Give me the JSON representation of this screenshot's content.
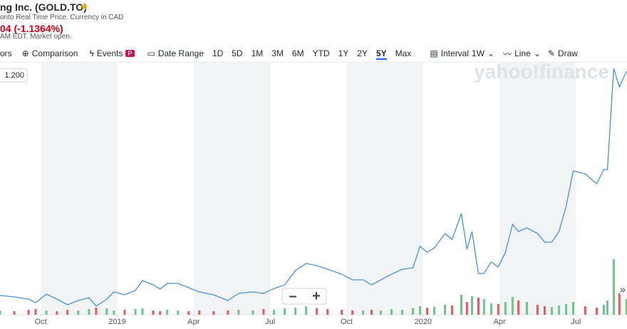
{
  "header": {
    "title": "ng Inc. (GOLD.TO)",
    "subtitle": "onto Real Time Price. Currency in CAD",
    "change": "04 (-1.1364%)",
    "status": "AM EDT. Market open."
  },
  "toolbar": {
    "indicators": "ors",
    "comparison": "Comparison",
    "events": "Events",
    "date_range": "Date Range",
    "ranges": [
      "1D",
      "5D",
      "1M",
      "3M",
      "6M",
      "YTD",
      "1Y",
      "2Y",
      "5Y",
      "Max"
    ],
    "active_range": "5Y",
    "interval": "Interval",
    "interval_value": "1W",
    "line": "Line",
    "draw": "Draw"
  },
  "watermark": "yahoo!finance",
  "chart_data": {
    "type": "line",
    "price_label": "1.200",
    "color": "#4a90d9",
    "x": [
      -1.6,
      -1.04,
      -0.48,
      -0.2,
      0.22,
      0.63,
      1.05,
      1.47,
      1.89,
      2.17,
      2.59,
      2.87,
      3.29,
      3.71,
      3.99,
      4.41,
      4.68,
      4.96,
      5.38,
      5.8,
      6.22,
      6.78,
      7.34,
      7.76,
      8.32,
      8.74,
      9.15,
      9.57,
      9.99,
      10.41,
      10.83,
      11.25,
      11.81,
      12.23,
      12.65,
      12.98,
      13.34,
      13.76,
      14.18,
      14.6,
      14.88,
      15.16,
      15.44,
      15.86,
      16.14,
      16.5,
      16.72,
      16.92,
      17.17,
      17.39,
      17.67,
      17.95,
      18.23,
      18.51,
      18.74,
      19.07,
      19.49,
      19.77,
      20.05,
      20.33,
      20.61,
      20.89,
      21.36,
      21.81,
      22.09,
      22.23,
      22.48,
      22.7,
      22.98
    ],
    "values": [
      0.089,
      0.082,
      0.071,
      0.053,
      0.096,
      0.071,
      0.043,
      0.064,
      0.078,
      0.036,
      0.071,
      0.107,
      0.092,
      0.114,
      0.163,
      0.142,
      0.121,
      0.149,
      0.149,
      0.128,
      0.107,
      0.092,
      0.064,
      0.099,
      0.107,
      0.099,
      0.124,
      0.142,
      0.213,
      0.249,
      0.238,
      0.22,
      0.195,
      0.167,
      0.167,
      0.142,
      0.167,
      0.195,
      0.22,
      0.227,
      0.334,
      0.305,
      0.326,
      0.398,
      0.369,
      0.497,
      0.32,
      0.408,
      0.199,
      0.199,
      0.256,
      0.231,
      0.305,
      0.444,
      0.408,
      0.426,
      0.398,
      0.355,
      0.355,
      0.408,
      0.533,
      0.71,
      0.696,
      0.646,
      0.717,
      0.717,
      1.222,
      1.129,
      1.207
    ],
    "volume": [
      6,
      5,
      7,
      8,
      6,
      5,
      7,
      6,
      8,
      10,
      9,
      6,
      7,
      8,
      9,
      6,
      5,
      7,
      6,
      5,
      6,
      5,
      6,
      7,
      6,
      8,
      7,
      9,
      10,
      12,
      9,
      8,
      7,
      6,
      6,
      7,
      6,
      8,
      7,
      9,
      12,
      10,
      11,
      14,
      13,
      28,
      18,
      26,
      24,
      22,
      16,
      15,
      18,
      25,
      20,
      18,
      14,
      12,
      11,
      13,
      15,
      18,
      12,
      10,
      14,
      20,
      78,
      30,
      22
    ],
    "xlim": [
      -1.6,
      23
    ],
    "xticks": [
      {
        "value": 0,
        "label": "Oct"
      },
      {
        "value": 3,
        "label": "2019"
      },
      {
        "value": 6,
        "label": "Apr"
      },
      {
        "value": 9,
        "label": "Jul"
      },
      {
        "value": 12,
        "label": "Oct"
      },
      {
        "value": 15,
        "label": "2020"
      },
      {
        "value": 18,
        "label": "Apr"
      },
      {
        "value": 21,
        "label": "Jul"
      }
    ],
    "ylim": [
      0,
      1.25
    ]
  }
}
